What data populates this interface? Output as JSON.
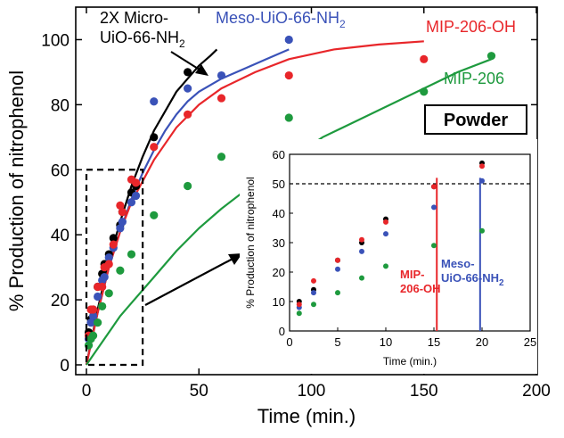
{
  "chart_data": [
    {
      "type": "scatter",
      "xlabel": "Time (min.)",
      "ylabel": "% Production of nitrophenol",
      "xlim": [
        0,
        200
      ],
      "ylim": [
        0,
        110
      ],
      "xticks": [
        "0",
        "50",
        "100",
        "150",
        "200"
      ],
      "yticks": [
        "0",
        "20",
        "40",
        "60",
        "80",
        "100"
      ],
      "box_label": "Powder",
      "series": [
        {
          "name": "2X Micro-UiO-66-NH2",
          "label_line1": "2X Micro-",
          "label_line2": "UiO-66-NH",
          "label_sub": "2",
          "color": "#000000",
          "points": [
            [
              1,
              10
            ],
            [
              2,
              14
            ],
            [
              3,
              17
            ],
            [
              5,
              24
            ],
            [
              7,
              28
            ],
            [
              8,
              31
            ],
            [
              10,
              34
            ],
            [
              12,
              39
            ],
            [
              15,
              43
            ],
            [
              16,
              47
            ],
            [
              20,
              53
            ],
            [
              22,
              55
            ],
            [
              30,
              70
            ],
            [
              45,
              90
            ]
          ],
          "fit": [
            [
              0,
              0
            ],
            [
              5,
              17
            ],
            [
              10,
              32
            ],
            [
              15,
              44
            ],
            [
              20,
              55
            ],
            [
              25,
              64
            ],
            [
              30,
              72
            ],
            [
              35,
              78
            ],
            [
              40,
              84
            ],
            [
              45,
              88
            ],
            [
              50,
              92
            ],
            [
              55,
              95
            ],
            [
              58,
              97
            ]
          ]
        },
        {
          "name": "Meso-UiO-66-NH2",
          "label_main": "Meso-UiO-66-NH",
          "label_sub": "2",
          "color": "#3a52b8",
          "points": [
            [
              1,
              8
            ],
            [
              2,
              13
            ],
            [
              3,
              15
            ],
            [
              5,
              21
            ],
            [
              7,
              26
            ],
            [
              8,
              27
            ],
            [
              10,
              33
            ],
            [
              12,
              36
            ],
            [
              15,
              42
            ],
            [
              16,
              44
            ],
            [
              20,
              50
            ],
            [
              22,
              52
            ],
            [
              30,
              81
            ],
            [
              45,
              85
            ],
            [
              60,
              89
            ],
            [
              90,
              100
            ]
          ],
          "fit": [
            [
              0,
              0
            ],
            [
              5,
              16
            ],
            [
              10,
              30
            ],
            [
              15,
              41
            ],
            [
              20,
              51
            ],
            [
              25,
              59
            ],
            [
              30,
              66
            ],
            [
              35,
              72
            ],
            [
              40,
              77
            ],
            [
              45,
              81
            ],
            [
              50,
              84
            ],
            [
              60,
              88
            ],
            [
              70,
              91
            ],
            [
              80,
              94
            ],
            [
              90,
              97
            ]
          ]
        },
        {
          "name": "MIP-206-OH",
          "color": "#e8262a",
          "points": [
            [
              1,
              9
            ],
            [
              2,
              17
            ],
            [
              3,
              17
            ],
            [
              5,
              24
            ],
            [
              7,
              24
            ],
            [
              8,
              30
            ],
            [
              10,
              31
            ],
            [
              12,
              37
            ],
            [
              15,
              49
            ],
            [
              16,
              47
            ],
            [
              20,
              57
            ],
            [
              22,
              56
            ],
            [
              30,
              67
            ],
            [
              45,
              77
            ],
            [
              60,
              82
            ],
            [
              90,
              89
            ],
            [
              150,
              94
            ]
          ],
          "fit": [
            [
              0,
              0
            ],
            [
              5,
              16
            ],
            [
              10,
              30
            ],
            [
              15,
              41
            ],
            [
              20,
              50
            ],
            [
              30,
              63
            ],
            [
              40,
              73
            ],
            [
              50,
              80
            ],
            [
              60,
              85
            ],
            [
              75,
              90
            ],
            [
              90,
              94
            ],
            [
              110,
              97
            ],
            [
              130,
              98.5
            ],
            [
              150,
              99.5
            ]
          ]
        },
        {
          "name": "MIP-206",
          "color": "#1e9a3e",
          "points": [
            [
              1,
              6
            ],
            [
              2,
              8
            ],
            [
              3,
              9
            ],
            [
              5,
              13
            ],
            [
              7,
              18
            ],
            [
              10,
              22
            ],
            [
              15,
              29
            ],
            [
              20,
              34
            ],
            [
              30,
              46
            ],
            [
              45,
              55
            ],
            [
              60,
              64
            ],
            [
              90,
              76
            ],
            [
              150,
              84
            ],
            [
              180,
              95
            ]
          ],
          "fit": [
            [
              0,
              0
            ],
            [
              5,
              5
            ],
            [
              10,
              10
            ],
            [
              15,
              15
            ],
            [
              20,
              19
            ],
            [
              30,
              27
            ],
            [
              40,
              35
            ],
            [
              50,
              42
            ],
            [
              60,
              48
            ],
            [
              75,
              56
            ],
            [
              90,
              63
            ],
            [
              105,
              70
            ],
            [
              120,
              75
            ],
            [
              135,
              80
            ],
            [
              150,
              85
            ],
            [
              165,
              90
            ],
            [
              180,
              94
            ]
          ]
        }
      ],
      "dashed_box": {
        "x": [
          0,
          25
        ],
        "y": [
          0,
          60
        ]
      }
    },
    {
      "type": "scatter",
      "xlabel": "Time (min.)",
      "ylabel": "% Production of nitrophenol",
      "xlim": [
        0,
        25
      ],
      "ylim": [
        0,
        60
      ],
      "xticks": [
        "0",
        "5",
        "10",
        "15",
        "20",
        "25"
      ],
      "yticks": [
        "0",
        "10",
        "20",
        "30",
        "40",
        "50",
        "60"
      ],
      "reference_line": 50,
      "series": [
        {
          "name": "2X Micro-UiO-66-NH2",
          "color": "#000000",
          "points": [
            [
              1,
              10
            ],
            [
              2.5,
              14
            ],
            [
              5,
              24
            ],
            [
              7.5,
              30
            ],
            [
              10,
              38
            ],
            [
              15,
              49
            ],
            [
              20,
              57
            ]
          ]
        },
        {
          "name": "Meso-UiO-66-NH2",
          "color": "#3a52b8",
          "points": [
            [
              1,
              8
            ],
            [
              2.5,
              13
            ],
            [
              5,
              21
            ],
            [
              7.5,
              27
            ],
            [
              10,
              33
            ],
            [
              15,
              42
            ],
            [
              20,
              51
            ]
          ]
        },
        {
          "name": "MIP-206-OH",
          "color": "#e8262a",
          "points": [
            [
              1,
              9
            ],
            [
              2.5,
              17
            ],
            [
              5,
              24
            ],
            [
              7.5,
              31
            ],
            [
              10,
              37
            ],
            [
              15,
              49
            ],
            [
              20,
              56
            ]
          ]
        },
        {
          "name": "MIP-206",
          "color": "#1e9a3e",
          "points": [
            [
              1,
              6
            ],
            [
              2.5,
              9
            ],
            [
              5,
              13
            ],
            [
              7.5,
              18
            ],
            [
              10,
              22
            ],
            [
              15,
              29
            ],
            [
              20,
              34
            ]
          ]
        }
      ],
      "markers": [
        {
          "x": 15.3,
          "color": "#e8262a",
          "label_line1": "MIP-",
          "label_line2": "206-OH"
        },
        {
          "x": 19.8,
          "color": "#3a52b8",
          "label_line1": "Meso-",
          "label_line2": "UiO-66-NH",
          "label_sub": "2"
        }
      ]
    }
  ]
}
